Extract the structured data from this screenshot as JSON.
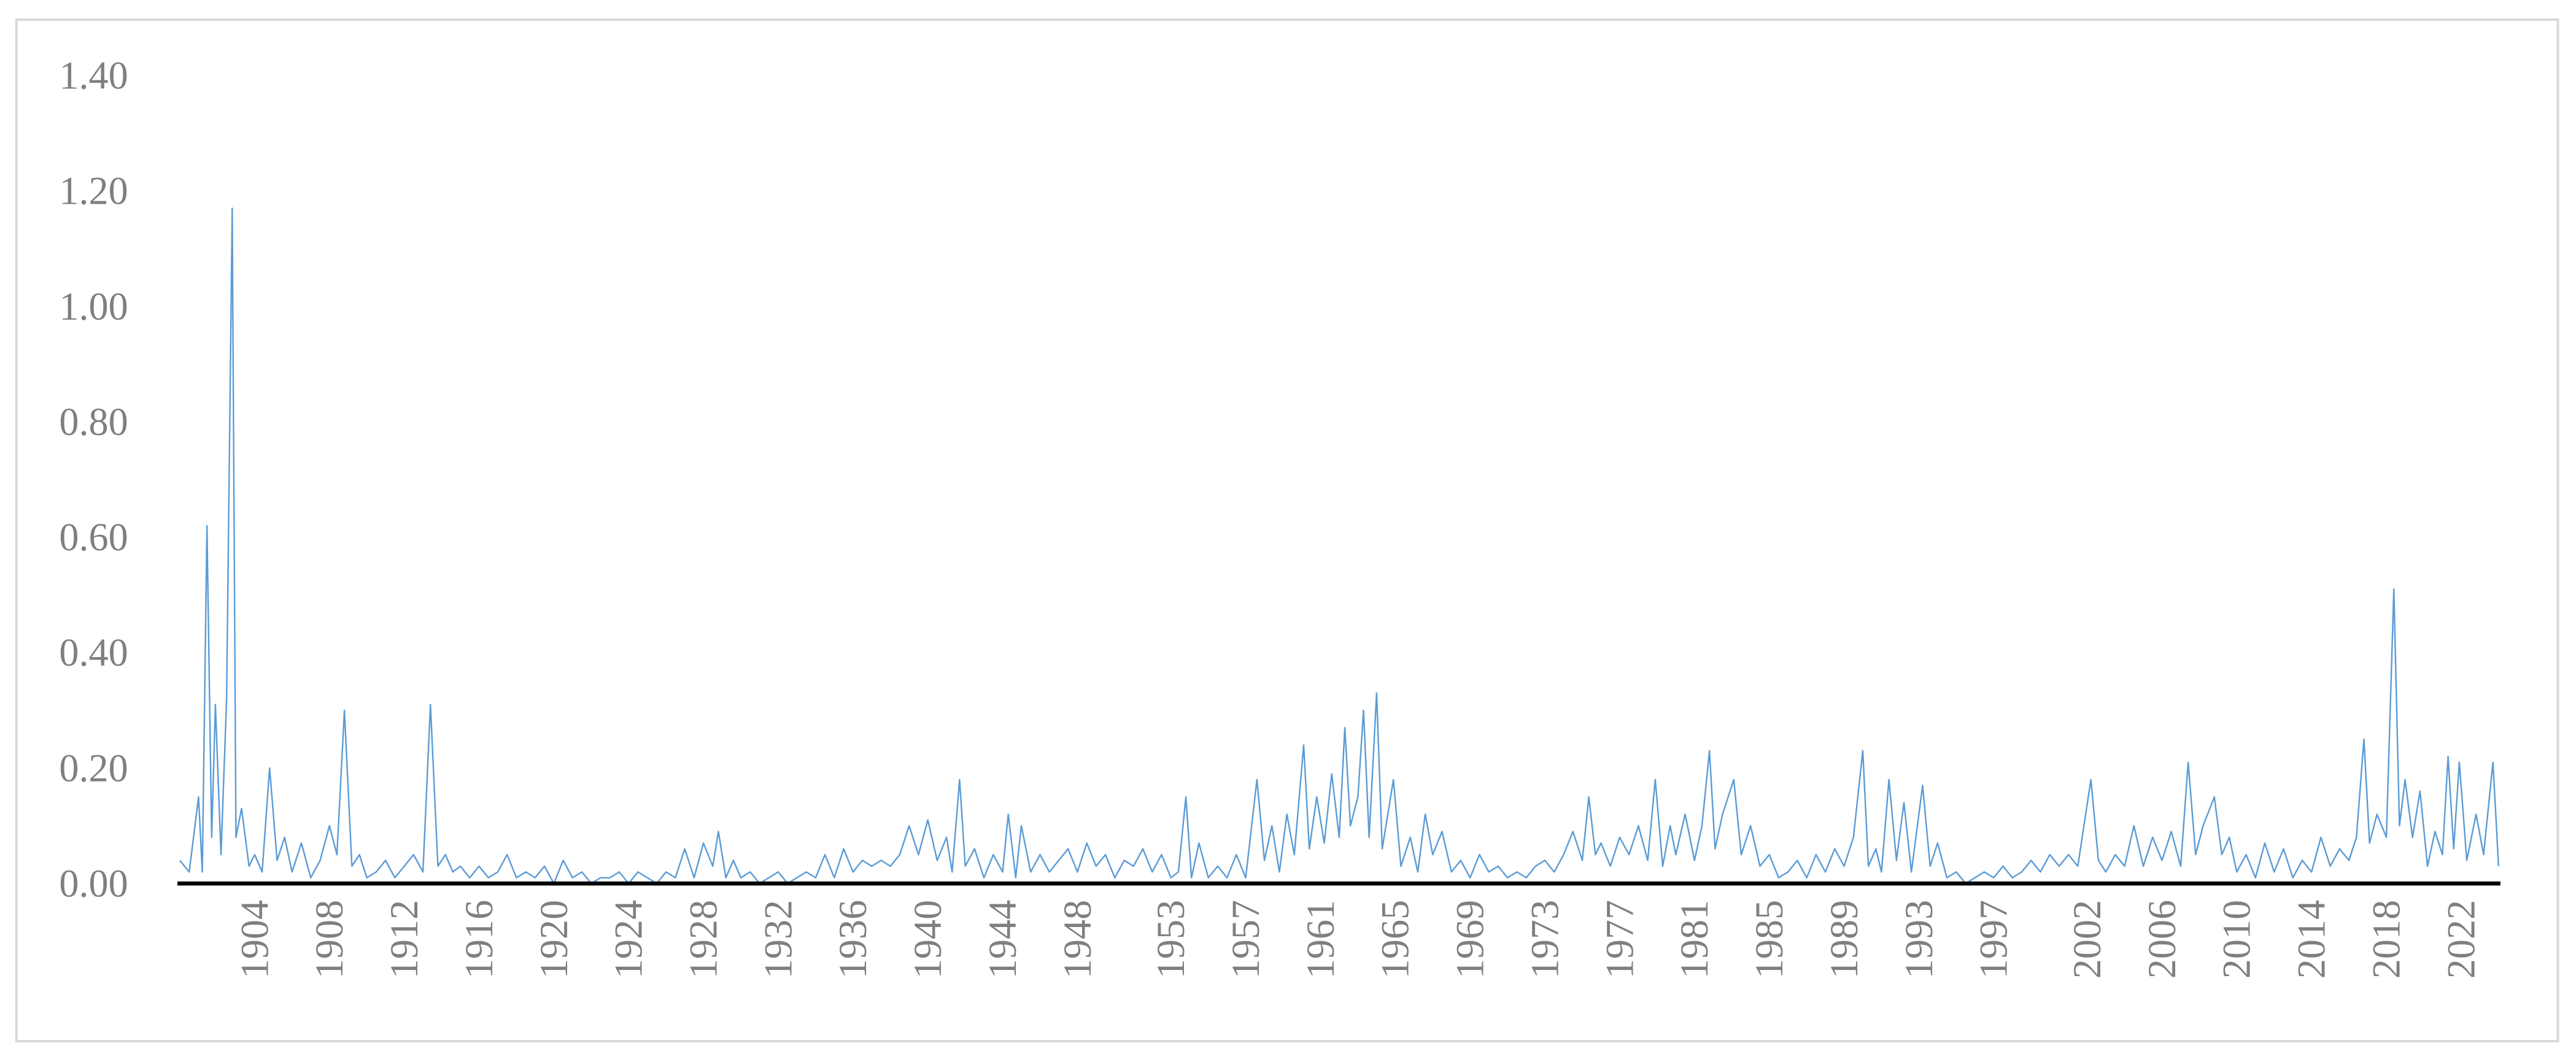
{
  "chart_data": {
    "type": "line",
    "x": [
      1900.0,
      1900.5,
      1901.0,
      1901.2,
      1901.45,
      1901.7,
      1901.9,
      1902.2,
      1902.5,
      1902.8,
      1903.0,
      1903.3,
      1903.7,
      1904.0,
      1904.4,
      1904.8,
      1905.2,
      1905.6,
      1906.0,
      1906.5,
      1907.0,
      1907.5,
      1908.0,
      1908.4,
      1908.8,
      1909.2,
      1909.6,
      1910.0,
      1910.5,
      1911.0,
      1911.5,
      1912.0,
      1912.5,
      1913.0,
      1913.4,
      1913.8,
      1914.2,
      1914.6,
      1915.0,
      1915.5,
      1916.0,
      1916.5,
      1917.0,
      1917.5,
      1918.0,
      1918.5,
      1919.0,
      1919.5,
      1920.0,
      1920.5,
      1921.0,
      1921.5,
      1922.0,
      1922.5,
      1923.0,
      1923.5,
      1924.0,
      1924.5,
      1925.0,
      1925.5,
      1926.0,
      1926.5,
      1927.0,
      1927.5,
      1928.0,
      1928.5,
      1928.8,
      1929.2,
      1929.6,
      1930.0,
      1930.5,
      1931.0,
      1931.5,
      1932.0,
      1932.5,
      1933.0,
      1933.5,
      1934.0,
      1934.5,
      1935.0,
      1935.5,
      1936.0,
      1936.5,
      1937.0,
      1937.5,
      1938.0,
      1938.5,
      1939.0,
      1939.5,
      1940.0,
      1940.5,
      1941.0,
      1941.3,
      1941.7,
      1942.0,
      1942.5,
      1943.0,
      1943.5,
      1944.0,
      1944.3,
      1944.7,
      1945.0,
      1945.5,
      1946.0,
      1946.5,
      1947.0,
      1947.5,
      1948.0,
      1948.5,
      1949.0,
      1949.5,
      1950.0,
      1950.5,
      1951.0,
      1951.5,
      1952.0,
      1952.5,
      1953.0,
      1953.4,
      1953.8,
      1954.1,
      1954.5,
      1955.0,
      1955.5,
      1956.0,
      1956.5,
      1957.0,
      1957.6,
      1958.0,
      1958.4,
      1958.8,
      1959.2,
      1959.6,
      1960.1,
      1960.4,
      1960.8,
      1961.2,
      1961.6,
      1962.0,
      1962.3,
      1962.6,
      1963.0,
      1963.3,
      1963.6,
      1964.0,
      1964.3,
      1964.9,
      1965.3,
      1965.8,
      1966.2,
      1966.6,
      1967.0,
      1967.5,
      1968.0,
      1968.5,
      1969.0,
      1969.5,
      1970.0,
      1970.5,
      1971.0,
      1971.5,
      1972.0,
      1972.5,
      1973.0,
      1973.5,
      1974.0,
      1974.5,
      1975.0,
      1975.35,
      1975.7,
      1976.0,
      1976.5,
      1977.0,
      1977.5,
      1978.0,
      1978.5,
      1978.9,
      1979.3,
      1979.7,
      1980.0,
      1980.5,
      1981.0,
      1981.4,
      1981.8,
      1982.1,
      1982.5,
      1983.1,
      1983.5,
      1984.0,
      1984.5,
      1985.0,
      1985.5,
      1986.0,
      1986.5,
      1987.0,
      1987.5,
      1988.0,
      1988.5,
      1989.0,
      1989.5,
      1990.0,
      1990.3,
      1990.7,
      1991.0,
      1991.4,
      1991.8,
      1992.2,
      1992.6,
      1993.2,
      1993.6,
      1994.0,
      1994.5,
      1995.0,
      1995.5,
      1996.0,
      1996.5,
      1997.0,
      1997.5,
      1998.0,
      1998.5,
      1999.0,
      1999.5,
      2000.0,
      2000.5,
      2001.0,
      2001.5,
      2002.2,
      2002.6,
      2003.0,
      2003.5,
      2004.0,
      2004.5,
      2005.0,
      2005.5,
      2006.0,
      2006.5,
      2007.0,
      2007.4,
      2007.8,
      2008.2,
      2008.8,
      2009.2,
      2009.6,
      2010.0,
      2010.5,
      2011.0,
      2011.5,
      2012.0,
      2012.5,
      2013.0,
      2013.5,
      2014.0,
      2014.5,
      2015.0,
      2015.5,
      2016.0,
      2016.4,
      2016.8,
      2017.1,
      2017.5,
      2018.0,
      2018.4,
      2018.7,
      2019.0,
      2019.4,
      2019.8,
      2020.2,
      2020.6,
      2021.0,
      2021.3,
      2021.6,
      2021.9,
      2022.3,
      2022.8,
      2023.2,
      2023.7,
      2024.0
    ],
    "series": [
      {
        "color": "#5b9bd5",
        "values": [
          0.04,
          0.02,
          0.15,
          0.02,
          0.62,
          0.08,
          0.31,
          0.05,
          0.32,
          1.17,
          0.08,
          0.13,
          0.03,
          0.05,
          0.02,
          0.2,
          0.04,
          0.08,
          0.02,
          0.07,
          0.01,
          0.04,
          0.1,
          0.05,
          0.3,
          0.03,
          0.05,
          0.01,
          0.02,
          0.04,
          0.01,
          0.03,
          0.05,
          0.02,
          0.31,
          0.03,
          0.05,
          0.02,
          0.03,
          0.01,
          0.03,
          0.01,
          0.02,
          0.05,
          0.01,
          0.02,
          0.01,
          0.03,
          0.0,
          0.04,
          0.01,
          0.02,
          0.0,
          0.01,
          0.01,
          0.02,
          0.0,
          0.02,
          0.01,
          0.0,
          0.02,
          0.01,
          0.06,
          0.01,
          0.07,
          0.03,
          0.09,
          0.01,
          0.04,
          0.01,
          0.02,
          0.0,
          0.01,
          0.02,
          0.0,
          0.01,
          0.02,
          0.01,
          0.05,
          0.01,
          0.06,
          0.02,
          0.04,
          0.03,
          0.04,
          0.03,
          0.05,
          0.1,
          0.05,
          0.11,
          0.04,
          0.08,
          0.02,
          0.18,
          0.03,
          0.06,
          0.01,
          0.05,
          0.02,
          0.12,
          0.01,
          0.1,
          0.02,
          0.05,
          0.02,
          0.04,
          0.06,
          0.02,
          0.07,
          0.03,
          0.05,
          0.01,
          0.04,
          0.03,
          0.06,
          0.02,
          0.05,
          0.01,
          0.02,
          0.15,
          0.01,
          0.07,
          0.01,
          0.03,
          0.01,
          0.05,
          0.01,
          0.18,
          0.04,
          0.1,
          0.02,
          0.12,
          0.05,
          0.24,
          0.06,
          0.15,
          0.07,
          0.19,
          0.08,
          0.27,
          0.1,
          0.15,
          0.3,
          0.08,
          0.33,
          0.06,
          0.18,
          0.03,
          0.08,
          0.02,
          0.12,
          0.05,
          0.09,
          0.02,
          0.04,
          0.01,
          0.05,
          0.02,
          0.03,
          0.01,
          0.02,
          0.01,
          0.03,
          0.04,
          0.02,
          0.05,
          0.09,
          0.04,
          0.15,
          0.05,
          0.07,
          0.03,
          0.08,
          0.05,
          0.1,
          0.04,
          0.18,
          0.03,
          0.1,
          0.05,
          0.12,
          0.04,
          0.1,
          0.23,
          0.06,
          0.12,
          0.18,
          0.05,
          0.1,
          0.03,
          0.05,
          0.01,
          0.02,
          0.04,
          0.01,
          0.05,
          0.02,
          0.06,
          0.03,
          0.08,
          0.23,
          0.03,
          0.06,
          0.02,
          0.18,
          0.04,
          0.14,
          0.02,
          0.17,
          0.03,
          0.07,
          0.01,
          0.02,
          0.0,
          0.01,
          0.02,
          0.01,
          0.03,
          0.01,
          0.02,
          0.04,
          0.02,
          0.05,
          0.03,
          0.05,
          0.03,
          0.18,
          0.04,
          0.02,
          0.05,
          0.03,
          0.1,
          0.03,
          0.08,
          0.04,
          0.09,
          0.03,
          0.21,
          0.05,
          0.1,
          0.15,
          0.05,
          0.08,
          0.02,
          0.05,
          0.01,
          0.07,
          0.02,
          0.06,
          0.01,
          0.04,
          0.02,
          0.08,
          0.03,
          0.06,
          0.04,
          0.08,
          0.25,
          0.07,
          0.12,
          0.08,
          0.51,
          0.1,
          0.18,
          0.08,
          0.16,
          0.03,
          0.09,
          0.05,
          0.22,
          0.06,
          0.21,
          0.04,
          0.12,
          0.05,
          0.21,
          0.03
        ]
      }
    ],
    "xlim": [
      1899.87,
      2024.1
    ],
    "xticks": [
      1904,
      1908,
      1912,
      1916,
      1920,
      1924,
      1928,
      1932,
      1936,
      1940,
      1944,
      1948,
      1953,
      1957,
      1961,
      1965,
      1969,
      1973,
      1977,
      1981,
      1985,
      1989,
      1993,
      1997,
      2002,
      2006,
      2010,
      2014,
      2018,
      2022
    ],
    "ylim": [
      0,
      1.4
    ],
    "yticks": [
      {
        "value": 0,
        "label": "0.00"
      },
      {
        "value": 0.2,
        "label": "0.20"
      },
      {
        "value": 0.4,
        "label": "0.40"
      },
      {
        "value": 0.6,
        "label": "0.60"
      },
      {
        "value": 0.8,
        "label": "0.80"
      },
      {
        "value": 1.0,
        "label": "1.00"
      },
      {
        "value": 1.2,
        "label": "1.20"
      },
      {
        "value": 1.4,
        "label": "1.40"
      }
    ],
    "grid": false
  }
}
